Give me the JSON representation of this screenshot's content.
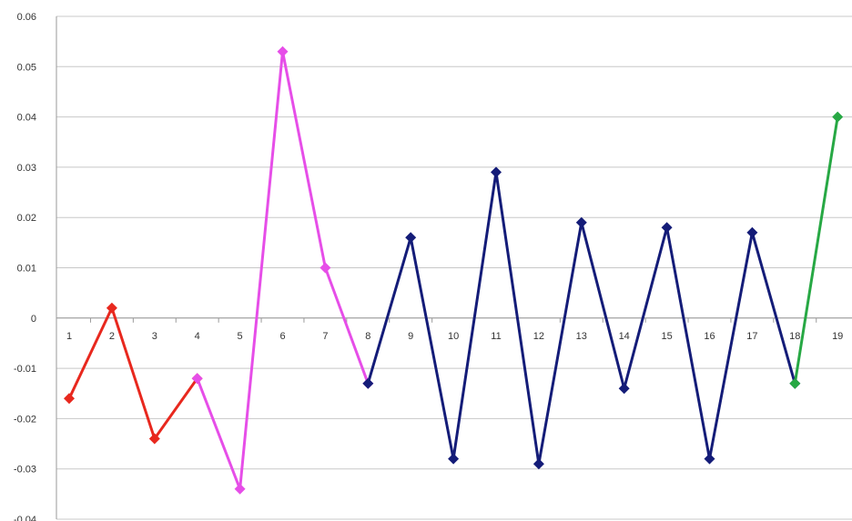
{
  "chart_data": {
    "type": "line",
    "title": "",
    "xlabel": "",
    "ylabel": "",
    "categories": [
      "1",
      "2",
      "3",
      "4",
      "5",
      "6",
      "7",
      "8",
      "9",
      "10",
      "11",
      "12",
      "13",
      "14",
      "15",
      "16",
      "17",
      "18",
      "19"
    ],
    "ylim": [
      -0.04,
      0.06
    ],
    "yticks": [
      -0.04,
      -0.03,
      -0.02,
      -0.01,
      0,
      0.01,
      0.02,
      0.03,
      0.04,
      0.05,
      0.06
    ],
    "ytick_labels": [
      "-0.04",
      "-0.03",
      "-0.02",
      "-0.01",
      "0",
      "0.01",
      "0.02",
      "0.03",
      "0.04",
      "0.05",
      "0.06"
    ],
    "grid": true,
    "legend": "none",
    "series": [
      {
        "color": "#e8281e",
        "x": [
          1,
          2,
          3,
          4
        ],
        "values": [
          -0.016,
          0.002,
          -0.024,
          -0.012
        ]
      },
      {
        "color": "#e64ee8",
        "x": [
          4,
          5,
          6,
          7,
          8
        ],
        "values": [
          -0.012,
          -0.034,
          0.053,
          0.01,
          -0.013
        ]
      },
      {
        "color": "#141c78",
        "x": [
          8,
          9,
          10,
          11,
          12,
          13,
          14,
          15,
          16,
          17,
          18
        ],
        "values": [
          -0.013,
          0.016,
          -0.028,
          0.029,
          -0.029,
          0.019,
          -0.014,
          0.018,
          -0.028,
          0.017,
          -0.013
        ]
      },
      {
        "color": "#27a844",
        "x": [
          18,
          19
        ],
        "values": [
          -0.013,
          0.04
        ]
      }
    ]
  }
}
